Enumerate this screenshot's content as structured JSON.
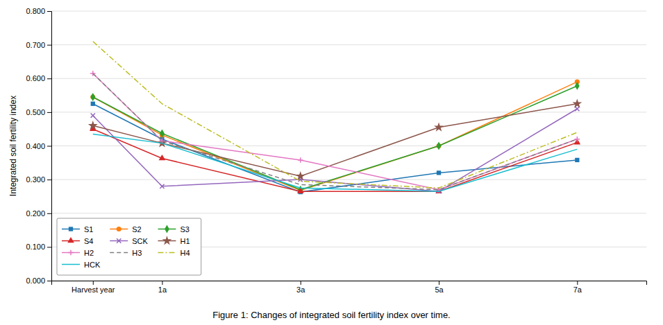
{
  "chart_data": {
    "type": "line",
    "title": "Figure 1: Changes of integrated soil fertility index over time.",
    "y_label": "Integrated soil fertility index",
    "x": [
      0,
      1,
      3,
      5,
      7
    ],
    "xlim": [
      -0.6,
      8.0
    ],
    "xticks": [
      {
        "value": 0,
        "label": "Harvest year"
      },
      {
        "value": 1,
        "label": "1a"
      },
      {
        "value": 3,
        "label": "3a"
      },
      {
        "value": 5,
        "label": "5a"
      },
      {
        "value": 7,
        "label": "7a"
      }
    ],
    "ylim": [
      0.0,
      0.8
    ],
    "yticks": [
      {
        "value": 0.0,
        "label": "0.000"
      },
      {
        "value": 0.1,
        "label": "0.100"
      },
      {
        "value": 0.2,
        "label": "0.200"
      },
      {
        "value": 0.3,
        "label": "0.300"
      },
      {
        "value": 0.4,
        "label": "0.400"
      },
      {
        "value": 0.5,
        "label": "0.500"
      },
      {
        "value": 0.6,
        "label": "0.600"
      },
      {
        "value": 0.7,
        "label": "0.700"
      },
      {
        "value": 0.8,
        "label": "0.800"
      }
    ],
    "grid": true,
    "legend": "lower left",
    "series": [
      {
        "name": "S1",
        "marker": "square",
        "line_style": "solid",
        "values": [
          0.525,
          0.42,
          0.263,
          0.32,
          0.358
        ]
      },
      {
        "name": "S2",
        "marker": "circle",
        "line_style": "solid",
        "values": [
          0.545,
          0.432,
          0.268,
          0.4,
          0.59
        ]
      },
      {
        "name": "S3",
        "marker": "diamond",
        "line_style": "solid",
        "values": [
          0.545,
          0.437,
          0.27,
          0.4,
          0.578
        ]
      },
      {
        "name": "S4",
        "marker": "triangle",
        "line_style": "solid",
        "values": [
          0.45,
          0.363,
          0.265,
          0.265,
          0.41
        ]
      },
      {
        "name": "SCK",
        "marker": "x",
        "line_style": "solid",
        "values": [
          0.49,
          0.28,
          0.3,
          0.265,
          0.51
        ]
      },
      {
        "name": "H1",
        "marker": "star",
        "line_style": "solid",
        "values": [
          0.46,
          0.408,
          0.31,
          0.455,
          0.525
        ]
      },
      {
        "name": "H2",
        "marker": "plus",
        "line_style": "solid",
        "values": [
          0.615,
          0.415,
          0.358,
          0.27,
          0.42
        ]
      },
      {
        "name": "H3",
        "line_style": "dashed",
        "values": [
          0.615,
          0.415,
          0.285,
          0.27,
          0.42
        ]
      },
      {
        "name": "H4",
        "line_style": "dashdot",
        "values": [
          0.71,
          0.525,
          0.295,
          0.275,
          0.44
        ]
      },
      {
        "name": "HCK",
        "line_style": "solid",
        "values": [
          0.435,
          0.408,
          0.275,
          0.265,
          0.39
        ]
      }
    ]
  }
}
